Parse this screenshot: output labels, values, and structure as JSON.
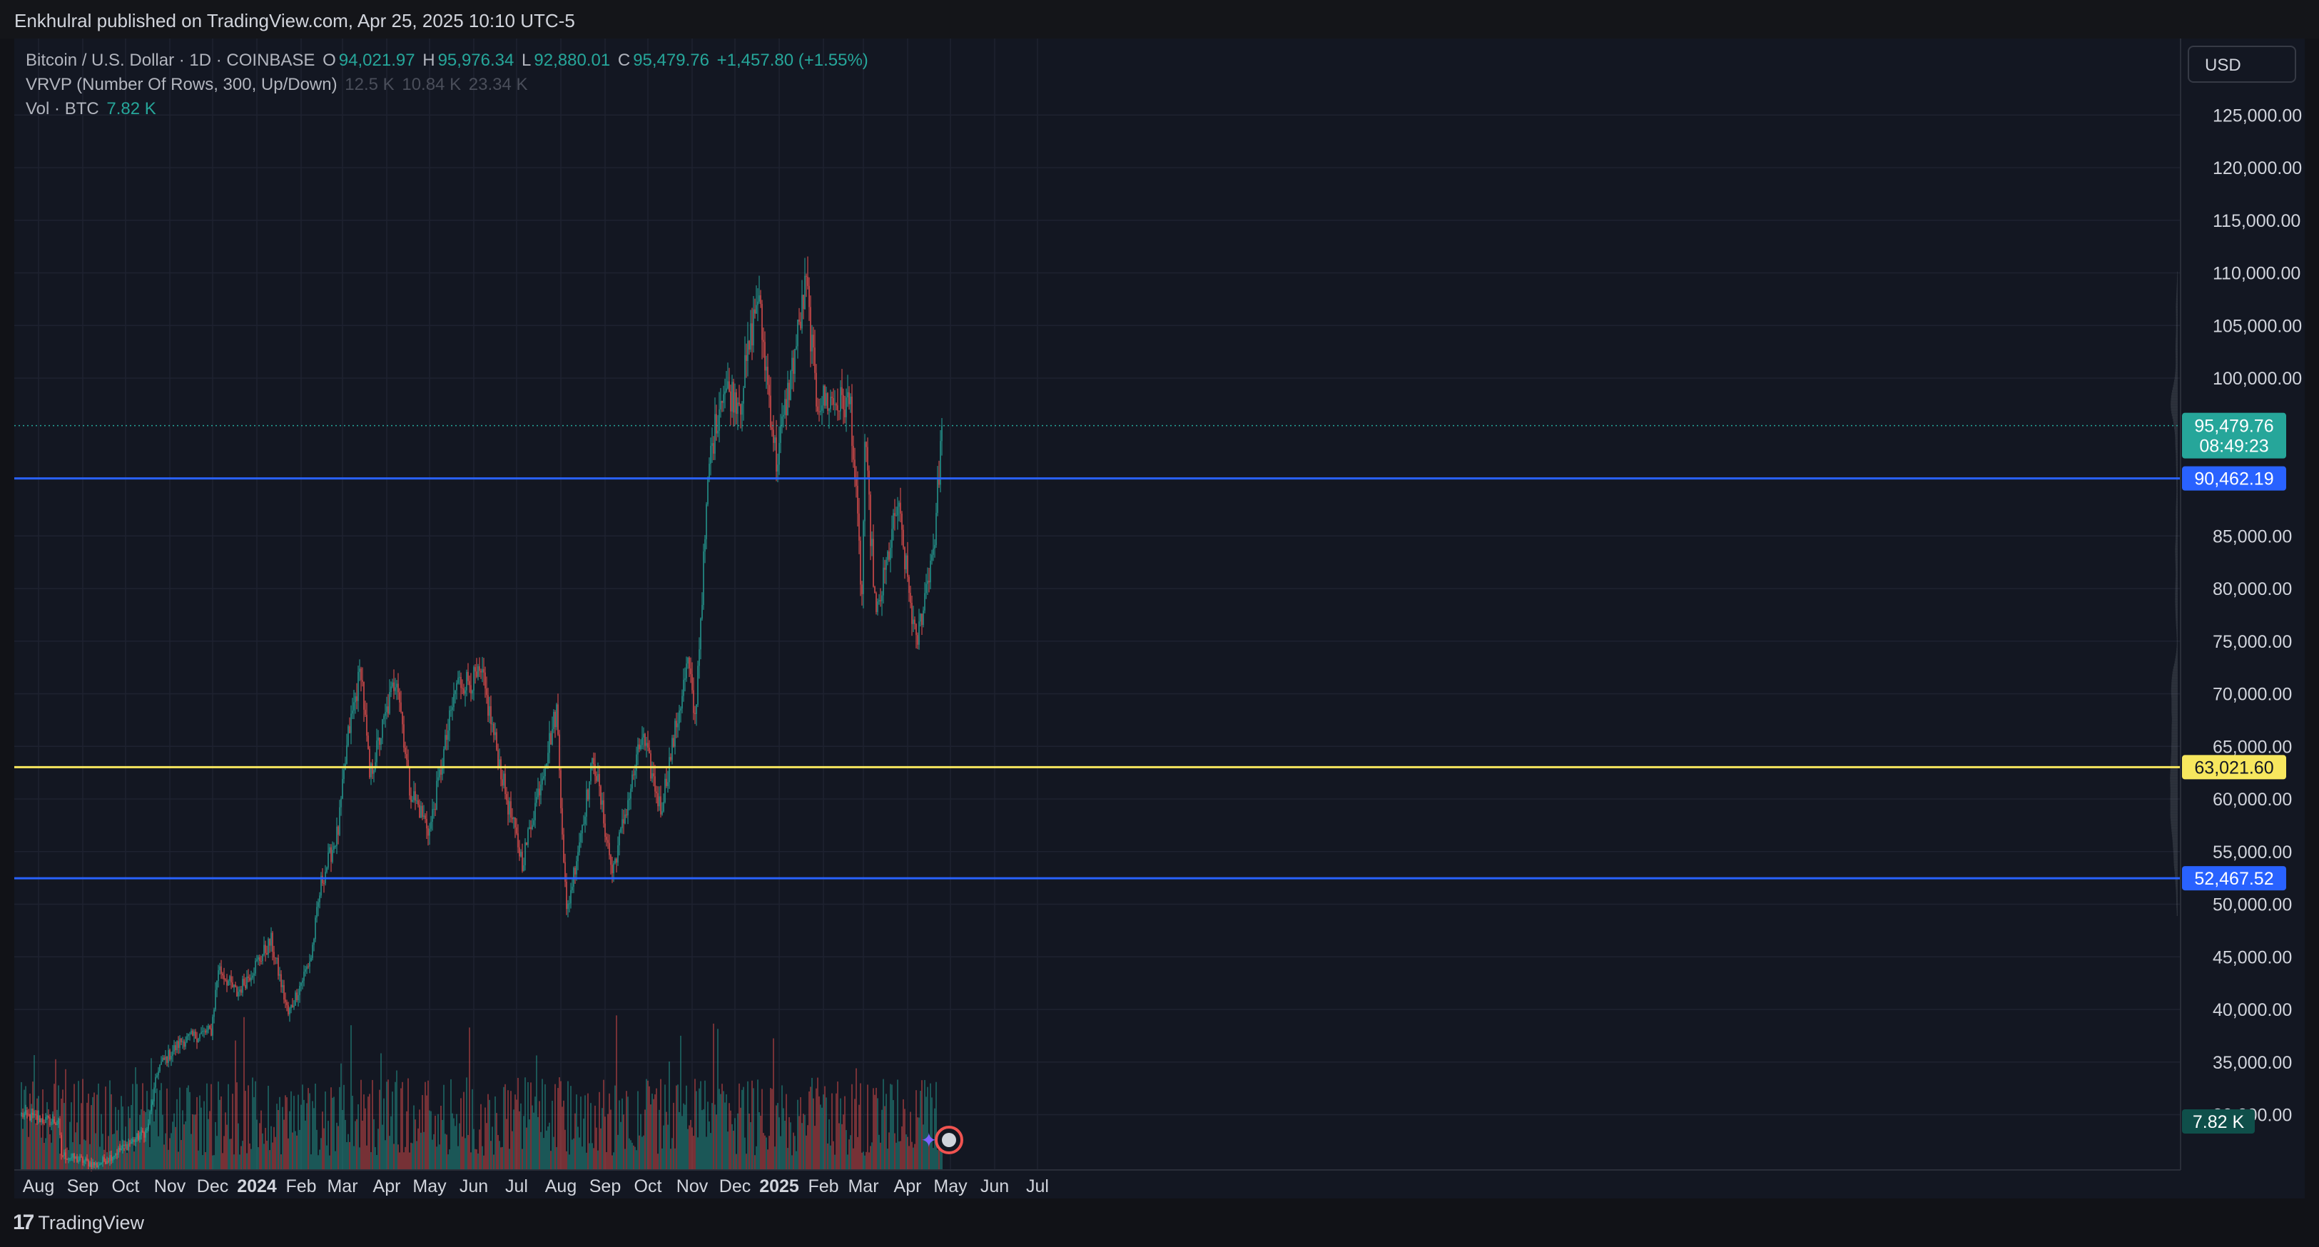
{
  "publisher_line": "Enkhulral published on TradingView.com, Apr 25, 2025 10:10 UTC-5",
  "legend": {
    "symbol": "Bitcoin / U.S. Dollar · 1D · COINBASE",
    "o_label": "O",
    "o_value": "94,021.97",
    "h_label": "H",
    "h_value": "95,976.34",
    "l_label": "L",
    "l_value": "92,880.01",
    "c_label": "C",
    "c_value": "95,479.76",
    "change": "+1,457.80 (+1.55%)",
    "vrvp_label": "VRVP (Number Of Rows, 300, Up/Down)",
    "vrvp_values": [
      "12.5 K",
      "10.84 K",
      "23.34 K"
    ],
    "vol_label": "Vol · BTC",
    "vol_value": "7.82 K"
  },
  "currency_button": "USD",
  "footer_brand": "TradingView",
  "footer_mark": "17",
  "colors": {
    "up": "#26a69a",
    "down": "#ef5350",
    "blue_line": "#2962ff",
    "yellow_line": "#f7e75e",
    "background": "#131722",
    "grid": "#1e2230",
    "axis_text": "#d1d4dc",
    "vrvp_fill": "#5d606b"
  },
  "chart_data": {
    "type": "candlestick",
    "symbol": "BTCUSD",
    "timeframe": "1D",
    "date_range": [
      "2023-07-20",
      "2025-04-25"
    ],
    "x_ticks": [
      "Aug",
      "Sep",
      "Oct",
      "Nov",
      "Dec",
      "2024",
      "Feb",
      "Mar",
      "Apr",
      "May",
      "Jun",
      "Jul",
      "Aug",
      "Sep",
      "Oct",
      "Nov",
      "Dec",
      "2025",
      "Feb",
      "Mar",
      "Apr",
      "May",
      "Jun",
      "Jul"
    ],
    "x_ticks_bold": [
      "2024",
      "2025"
    ],
    "y_ticks": [
      "30,000.00",
      "35,000.00",
      "40,000.00",
      "45,000.00",
      "50,000.00",
      "55,000.00",
      "60,000.00",
      "65,000.00",
      "70,000.00",
      "75,000.00",
      "80,000.00",
      "85,000.00",
      "100,000.00",
      "105,000.00",
      "110,000.00",
      "115,000.00",
      "120,000.00",
      "125,000.00"
    ],
    "y_tick_values": [
      30000,
      35000,
      40000,
      45000,
      50000,
      55000,
      60000,
      65000,
      70000,
      75000,
      80000,
      85000,
      100000,
      105000,
      110000,
      115000,
      120000,
      125000
    ],
    "ylim": [
      26000,
      130000
    ],
    "price_path": [
      [
        "2023-07-20",
        30000
      ],
      [
        "2023-08-15",
        29200
      ],
      [
        "2023-08-17",
        26200
      ],
      [
        "2023-09-11",
        25200
      ],
      [
        "2023-10-01",
        27000
      ],
      [
        "2023-10-16",
        28500
      ],
      [
        "2023-10-24",
        34500
      ],
      [
        "2023-11-09",
        37000
      ],
      [
        "2023-11-30",
        38000
      ],
      [
        "2023-12-05",
        44000
      ],
      [
        "2023-12-18",
        41500
      ],
      [
        "2024-01-11",
        46500
      ],
      [
        "2024-01-23",
        39500
      ],
      [
        "2024-02-08",
        45000
      ],
      [
        "2024-02-15",
        52000
      ],
      [
        "2024-02-27",
        57000
      ],
      [
        "2024-03-05",
        66000
      ],
      [
        "2024-03-14",
        72500
      ],
      [
        "2024-03-20",
        62000
      ],
      [
        "2024-04-08",
        72000
      ],
      [
        "2024-04-17",
        61000
      ],
      [
        "2024-05-01",
        57000
      ],
      [
        "2024-05-20",
        71000
      ],
      [
        "2024-06-07",
        71500
      ],
      [
        "2024-06-24",
        60000
      ],
      [
        "2024-07-05",
        54000
      ],
      [
        "2024-07-29",
        68500
      ],
      [
        "2024-08-05",
        49000
      ],
      [
        "2024-08-24",
        64000
      ],
      [
        "2024-09-06",
        53000
      ],
      [
        "2024-09-27",
        66000
      ],
      [
        "2024-10-10",
        59000
      ],
      [
        "2024-10-29",
        73000
      ],
      [
        "2024-11-03",
        67500
      ],
      [
        "2024-11-13",
        92000
      ],
      [
        "2024-11-22",
        99000
      ],
      [
        "2024-12-05",
        98000
      ],
      [
        "2024-12-17",
        108000
      ],
      [
        "2024-12-30",
        92000
      ],
      [
        "2025-01-20",
        109000
      ],
      [
        "2025-01-27",
        98000
      ],
      [
        "2025-02-20",
        97500
      ],
      [
        "2025-02-28",
        79000
      ],
      [
        "2025-03-02",
        94000
      ],
      [
        "2025-03-10",
        77000
      ],
      [
        "2025-03-25",
        88000
      ],
      [
        "2025-04-07",
        74500
      ],
      [
        "2025-04-20",
        85000
      ],
      [
        "2025-04-25",
        95479.76
      ]
    ],
    "horizontal_levels": [
      {
        "value": 90462.19,
        "label": "90,462.19",
        "color": "#2962ff"
      },
      {
        "value": 63021.6,
        "label": "63,021.60",
        "color": "#f7e75e"
      },
      {
        "value": 52467.52,
        "label": "52,467.52",
        "color": "#2962ff"
      }
    ],
    "last_price": {
      "value": 95479.76,
      "label": "95,479.76",
      "countdown": "08:49:23",
      "color": "#26a69a"
    },
    "volume": {
      "unit": "BTC",
      "last_label": "7.82 K"
    },
    "volume_profile": {
      "type": "VRVP",
      "rows": 300,
      "mode": "Up/Down"
    }
  }
}
